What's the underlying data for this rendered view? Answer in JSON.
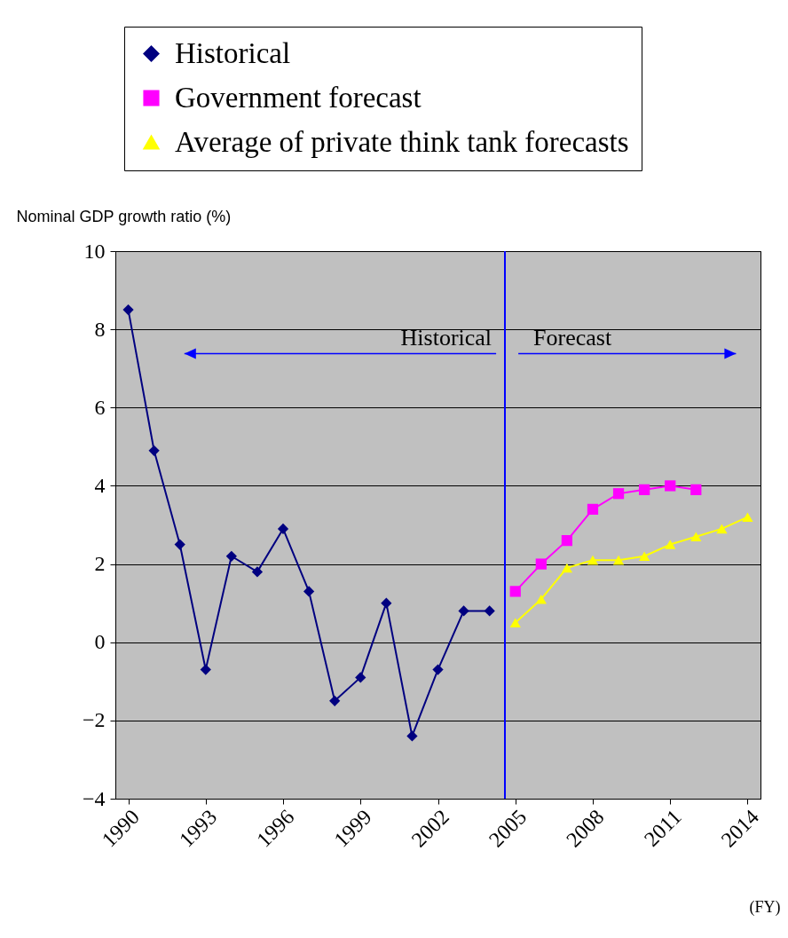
{
  "chart_data": {
    "type": "line",
    "xlabel": "(FY)",
    "ylabel": "Nominal GDP growth ratio (%)",
    "xlim": [
      1989.5,
      2014.5
    ],
    "xticks": [
      1990,
      1993,
      1996,
      1999,
      2002,
      2005,
      2008,
      2011,
      2014
    ],
    "ylim": [
      -4,
      10
    ],
    "yticks": [
      -4,
      -2,
      0,
      2,
      4,
      6,
      8,
      10
    ],
    "grid": "y",
    "legend": "top",
    "series": [
      {
        "name": "Historical",
        "color": "#000080",
        "marker": "diamond",
        "x": [
          1990,
          1991,
          1992,
          1993,
          1994,
          1995,
          1996,
          1997,
          1998,
          1999,
          2000,
          2001,
          2002,
          2003,
          2004
        ],
        "values": [
          8.5,
          4.9,
          2.5,
          -0.7,
          2.2,
          1.8,
          2.9,
          1.3,
          -1.5,
          -0.9,
          1.0,
          -2.4,
          -0.7,
          0.8,
          0.8
        ]
      },
      {
        "name": "Government forecast",
        "color": "#ff00ff",
        "marker": "square",
        "x": [
          2005,
          2006,
          2007,
          2008,
          2009,
          2010,
          2011,
          2012
        ],
        "values": [
          1.3,
          2.0,
          2.6,
          3.4,
          3.8,
          3.9,
          4.0,
          3.9
        ]
      },
      {
        "name": "Average of private think tank forecasts",
        "color": "#ffff00",
        "marker": "triangle",
        "x": [
          2005,
          2006,
          2007,
          2008,
          2009,
          2010,
          2011,
          2012,
          2013,
          2014
        ],
        "values": [
          0.5,
          1.1,
          1.9,
          2.1,
          2.1,
          2.2,
          2.5,
          2.7,
          2.9,
          3.2
        ]
      }
    ],
    "ref_lines": [
      {
        "axis": "x",
        "value": 2004.6,
        "color": "#0000ff"
      }
    ],
    "annotations": [
      "Historical",
      "Forecast"
    ]
  }
}
